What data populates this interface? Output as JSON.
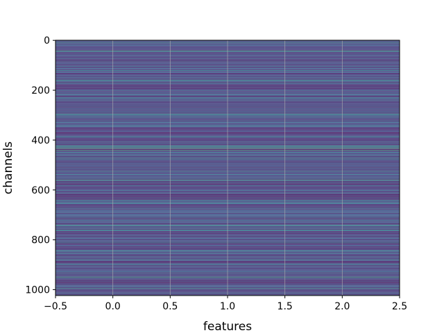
{
  "chart_data": {
    "type": "heatmap",
    "xlabel": "features",
    "ylabel": "channels",
    "title": "",
    "xlim": [
      -0.5,
      2.5
    ],
    "ylim": [
      1023.5,
      -0.5
    ],
    "y_inverted": true,
    "grid": true,
    "x_ticks": [
      -0.5,
      0.0,
      0.5,
      1.0,
      1.5,
      2.0,
      2.5
    ],
    "x_tick_labels": [
      "−0.5",
      "0.0",
      "0.5",
      "1.0",
      "1.5",
      "2.0",
      "2.5"
    ],
    "y_ticks": [
      0,
      200,
      400,
      600,
      800,
      1000
    ],
    "y_tick_labels": [
      "0",
      "200",
      "400",
      "600",
      "800",
      "1000"
    ],
    "n_channels": 1024,
    "n_features": 3,
    "colormap": "viridis",
    "colormap_stops": [
      "#440154",
      "#3b528b",
      "#21918c",
      "#5ec962",
      "#fde725"
    ],
    "rows_constant_across_features": true,
    "value_range": [
      0,
      1
    ],
    "highlight_rows": [
      {
        "channel": 8,
        "value": 0.55
      },
      {
        "channel": 42,
        "value": 0.62
      },
      {
        "channel": 120,
        "value": 0.5
      },
      {
        "channel": 160,
        "value": 0.55
      },
      {
        "channel": 232,
        "value": 0.5
      },
      {
        "channel": 296,
        "value": 0.58
      },
      {
        "channel": 388,
        "value": 0.52
      },
      {
        "channel": 425,
        "value": 0.6
      },
      {
        "channel": 432,
        "value": 0.68
      },
      {
        "channel": 440,
        "value": 0.64
      },
      {
        "channel": 475,
        "value": 0.5
      },
      {
        "channel": 525,
        "value": 0.52
      },
      {
        "channel": 560,
        "value": 0.6
      },
      {
        "channel": 640,
        "value": 0.5
      },
      {
        "channel": 742,
        "value": 0.58
      },
      {
        "channel": 760,
        "value": 0.52
      },
      {
        "channel": 880,
        "value": 0.5
      },
      {
        "channel": 950,
        "value": 0.62
      },
      {
        "channel": 995,
        "value": 0.55
      }
    ]
  }
}
